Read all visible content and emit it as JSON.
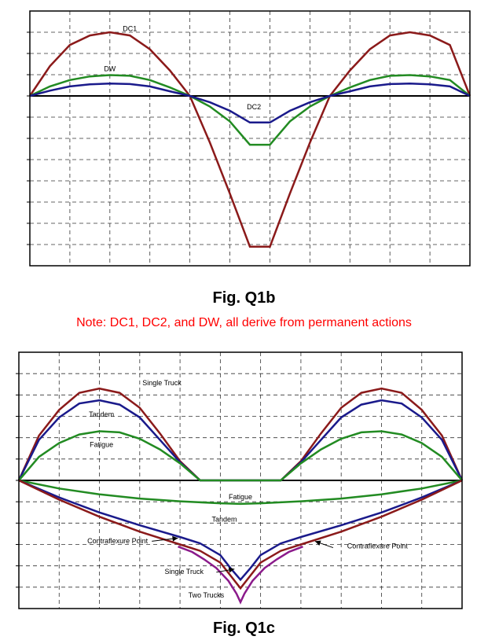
{
  "chart_data": [
    {
      "type": "line",
      "title": "",
      "xlabel": "",
      "ylabel": "",
      "grid": true,
      "xlim": [
        0,
        11
      ],
      "ylim": [
        -8,
        4
      ],
      "series": [
        {
          "name": "DC1",
          "color": "#8b1a1a",
          "x": [
            0,
            0.5,
            1,
            1.5,
            2,
            2.5,
            3,
            3.5,
            4,
            4.5,
            5,
            5.5,
            6,
            6.5,
            7,
            7.5,
            8,
            8.5,
            9,
            9.5,
            10,
            10.5,
            11
          ],
          "y": [
            0,
            1.4,
            2.4,
            2.85,
            3,
            2.85,
            2.2,
            1.2,
            0,
            -2.2,
            -4.6,
            -7.1,
            -7.1,
            -4.6,
            -2.2,
            0,
            1.2,
            2.2,
            2.85,
            3,
            2.85,
            2.4,
            0
          ]
        },
        {
          "name": "DW",
          "color": "#228b22",
          "x": [
            0,
            0.5,
            1,
            1.5,
            2,
            2.5,
            3,
            3.5,
            4,
            4.5,
            5,
            5.5,
            6,
            6.5,
            7,
            7.5,
            8,
            8.5,
            9,
            9.5,
            10,
            10.5,
            11
          ],
          "y": [
            0,
            0.45,
            0.75,
            0.92,
            0.98,
            0.95,
            0.75,
            0.4,
            0,
            -0.5,
            -1.2,
            -2.3,
            -2.3,
            -1.2,
            -0.5,
            0,
            0.4,
            0.75,
            0.95,
            0.98,
            0.92,
            0.75,
            0
          ]
        },
        {
          "name": "DC2",
          "color": "#1a1a8b",
          "x": [
            0,
            0.5,
            1,
            1.5,
            2,
            2.5,
            3,
            3.5,
            4,
            4.5,
            5,
            5.5,
            6,
            6.5,
            7,
            7.5,
            8,
            8.5,
            9,
            9.5,
            10,
            10.5,
            11
          ],
          "y": [
            0,
            0.25,
            0.45,
            0.55,
            0.58,
            0.56,
            0.45,
            0.22,
            0,
            -0.3,
            -0.7,
            -1.25,
            -1.25,
            -0.7,
            -0.3,
            0,
            0.22,
            0.45,
            0.56,
            0.58,
            0.55,
            0.45,
            0
          ]
        }
      ],
      "labels": [
        {
          "text": "DC1",
          "x": 2.5,
          "y": 3.15
        },
        {
          "text": "DW",
          "x": 2,
          "y": 1.25
        },
        {
          "text": "DC2",
          "x": 5.6,
          "y": -0.55
        }
      ]
    },
    {
      "type": "line",
      "title": "",
      "xlabel": "",
      "ylabel": "",
      "grid": true,
      "xlim": [
        0,
        11
      ],
      "ylim": [
        -6,
        6
      ],
      "series": [
        {
          "name": "Single Truck",
          "color": "#8b1a1a",
          "x": [
            0,
            0.5,
            1,
            1.5,
            2,
            2.5,
            3,
            3.5,
            4,
            4.5,
            5,
            5.5,
            6,
            6.5,
            7,
            7.5,
            8,
            8.5,
            9,
            9.5,
            10,
            10.5,
            11
          ],
          "y": [
            0,
            2.1,
            3.3,
            4.1,
            4.3,
            4.1,
            3.4,
            2.2,
            0.9,
            0,
            0,
            0,
            0,
            0,
            0.9,
            2.2,
            3.4,
            4.1,
            4.3,
            4.1,
            3.3,
            2.1,
            0
          ]
        },
        {
          "name": "Tandem",
          "color": "#1a1a8b",
          "x": [
            0,
            0.5,
            1,
            1.5,
            2,
            2.5,
            3,
            3.5,
            4,
            4.5,
            5,
            5.5,
            6,
            6.5,
            7,
            7.5,
            8,
            8.5,
            9,
            9.5,
            10,
            10.5,
            11
          ],
          "y": [
            0,
            1.9,
            2.95,
            3.6,
            3.75,
            3.55,
            2.95,
            1.9,
            0.85,
            0,
            0,
            0,
            0,
            0,
            0.85,
            1.9,
            2.95,
            3.55,
            3.75,
            3.6,
            2.95,
            1.9,
            0
          ]
        },
        {
          "name": "Fatigue",
          "color": "#228b22",
          "x": [
            0,
            0.5,
            1,
            1.5,
            2,
            2.5,
            3,
            3.5,
            4,
            4.5,
            5,
            5.5,
            6,
            6.5,
            7,
            7.5,
            8,
            8.5,
            9,
            9.5,
            10,
            10.5,
            11
          ],
          "y": [
            0,
            1.1,
            1.75,
            2.15,
            2.3,
            2.25,
            1.95,
            1.45,
            0.8,
            0,
            0,
            0,
            0,
            0,
            0.8,
            1.45,
            1.95,
            2.25,
            2.3,
            2.15,
            1.75,
            1.1,
            0
          ]
        },
        {
          "name": "Fatigue",
          "color": "#228b22",
          "x": [
            0,
            1,
            2,
            3,
            4,
            5,
            5.5,
            6,
            7,
            8,
            9,
            10,
            11
          ],
          "y": [
            0,
            -0.38,
            -0.65,
            -0.85,
            -0.98,
            -1.07,
            -1.1,
            -1.07,
            -0.98,
            -0.85,
            -0.65,
            -0.38,
            0
          ]
        },
        {
          "name": "Tandem",
          "color": "#1a1a8b",
          "x": [
            0,
            1,
            2,
            3,
            4,
            4.5,
            5,
            5.25,
            5.5,
            5.75,
            6,
            6.5,
            7,
            8,
            9,
            10,
            11
          ],
          "y": [
            0,
            -0.8,
            -1.5,
            -2.1,
            -2.65,
            -2.95,
            -3.5,
            -4.1,
            -4.65,
            -4.1,
            -3.5,
            -2.95,
            -2.65,
            -2.1,
            -1.5,
            -0.8,
            0
          ]
        },
        {
          "name": "Single Truck",
          "color": "#8b1a1a",
          "x": [
            0,
            1,
            2,
            3,
            4,
            4.5,
            5,
            5.25,
            5.5,
            5.75,
            6,
            6.5,
            7,
            8,
            9,
            10,
            11
          ],
          "y": [
            0,
            -0.9,
            -1.7,
            -2.4,
            -3,
            -3.3,
            -3.85,
            -4.45,
            -5.05,
            -4.45,
            -3.85,
            -3.3,
            -3,
            -2.4,
            -1.7,
            -0.9,
            0
          ]
        },
        {
          "name": "Two Trucks",
          "color": "#8b1a8b",
          "x": [
            3.95,
            4.3,
            4.6,
            4.9,
            5.2,
            5.4,
            5.5,
            5.6,
            5.8,
            6.1,
            6.4,
            6.7,
            7.05
          ],
          "y": [
            -3.1,
            -3.35,
            -3.7,
            -4.1,
            -4.7,
            -5.3,
            -5.7,
            -5.3,
            -4.7,
            -4.1,
            -3.7,
            -3.35,
            -3.1
          ]
        }
      ],
      "labels": [
        {
          "text": "Single Truck",
          "x": 3.55,
          "y": 4.55
        },
        {
          "text": "Tandem",
          "x": 2.05,
          "y": 3.07
        },
        {
          "text": "Fatigue",
          "x": 2.05,
          "y": 1.65
        },
        {
          "text": "Fatigue",
          "x": 5.5,
          "y": -0.8
        },
        {
          "text": "Tandem",
          "x": 5.1,
          "y": -1.85
        },
        {
          "text": "Contraflexure Point",
          "x": 2.45,
          "y": -2.85
        },
        {
          "text": "Single Truck",
          "x": 4.1,
          "y": -4.3
        },
        {
          "text": "Two Trucks",
          "x": 4.65,
          "y": -5.4
        },
        {
          "text": "Contraflexure Point",
          "x": 8.9,
          "y": -3.1
        }
      ],
      "annotations": [
        {
          "from": [
            3.3,
            -2.85
          ],
          "to": [
            3.95,
            -2.7
          ]
        },
        {
          "from": [
            4.9,
            -4.3
          ],
          "to": [
            5.35,
            -4.15
          ]
        },
        {
          "from": [
            7.8,
            -3.15
          ],
          "to": [
            7.35,
            -2.85
          ]
        }
      ]
    }
  ],
  "captions": {
    "fig1": "Fig. Q1b",
    "note": "Note: DC1, DC2, and DW, all derive from permanent actions",
    "fig2": "Fig. Q1c"
  }
}
